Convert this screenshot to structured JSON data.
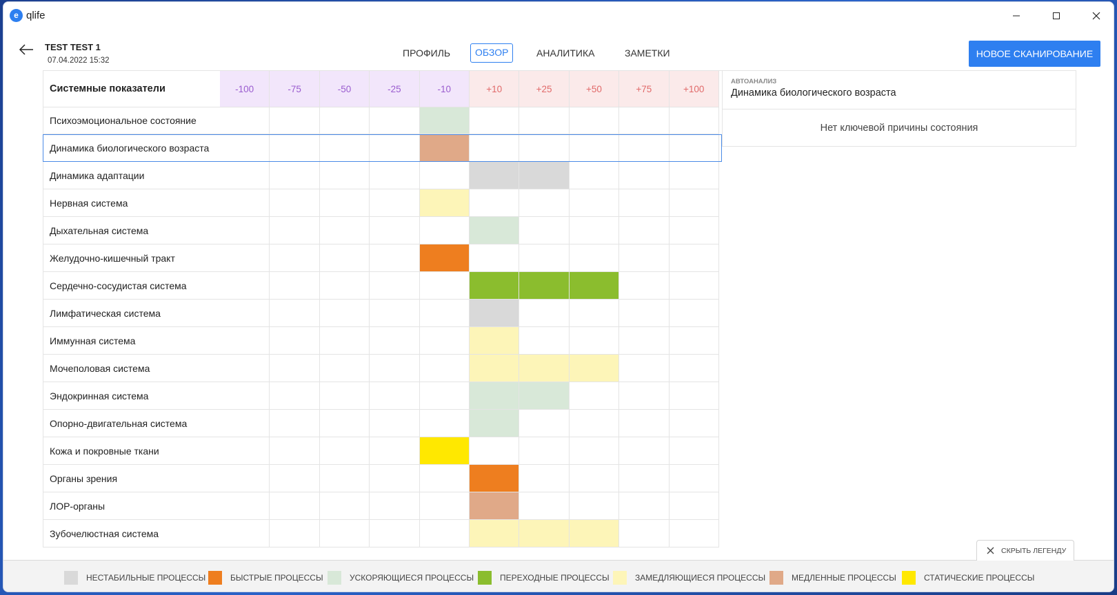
{
  "app": {
    "title": "qlife",
    "logo_letter": "e"
  },
  "header": {
    "patient_name": "TEST TEST 1",
    "date": "07.04.2022 15:32",
    "tabs": [
      {
        "label": "ПРОФИЛЬ",
        "active": false
      },
      {
        "label": "ОБЗОР",
        "active": true
      },
      {
        "label": "АНАЛИТИКА",
        "active": false
      },
      {
        "label": "ЗАМЕТКИ",
        "active": false
      }
    ],
    "new_scan_label": "НОВОЕ СКАНИРОВАНИЕ"
  },
  "grid": {
    "title": "Системные показатели",
    "columns": [
      "-100",
      "-75",
      "-50",
      "-25",
      "-10",
      "+10",
      "+25",
      "+50",
      "+75",
      "+100"
    ],
    "rows": [
      {
        "label": "Психоэмоциональное состояние",
        "cells": [
          null,
          null,
          null,
          null,
          "accelerating",
          null,
          null,
          null,
          null,
          null
        ]
      },
      {
        "label": "Динамика биологического возраста",
        "selected": true,
        "cells": [
          null,
          null,
          null,
          null,
          "slow",
          null,
          null,
          null,
          null,
          null
        ]
      },
      {
        "label": "Динамика адаптации",
        "cells": [
          null,
          null,
          null,
          null,
          null,
          "unstable",
          "unstable",
          null,
          null,
          null
        ]
      },
      {
        "label": "Нервная система",
        "cells": [
          null,
          null,
          null,
          null,
          "slowing",
          null,
          null,
          null,
          null,
          null
        ]
      },
      {
        "label": "Дыхательная система",
        "cells": [
          null,
          null,
          null,
          null,
          null,
          "accelerating",
          null,
          null,
          null,
          null
        ]
      },
      {
        "label": "Желудочно-кишечный тракт",
        "cells": [
          null,
          null,
          null,
          null,
          "fast",
          null,
          null,
          null,
          null,
          null
        ]
      },
      {
        "label": "Сердечно-сосудистая система",
        "cells": [
          null,
          null,
          null,
          null,
          null,
          "transitional",
          "transitional",
          "transitional",
          null,
          null
        ]
      },
      {
        "label": "Лимфатическая система",
        "cells": [
          null,
          null,
          null,
          null,
          null,
          "unstable",
          null,
          null,
          null,
          null
        ]
      },
      {
        "label": "Иммунная система",
        "cells": [
          null,
          null,
          null,
          null,
          null,
          "slowing",
          null,
          null,
          null,
          null
        ]
      },
      {
        "label": "Мочеполовая система",
        "cells": [
          null,
          null,
          null,
          null,
          null,
          "slowing",
          "slowing",
          "slowing",
          null,
          null
        ]
      },
      {
        "label": "Эндокринная система",
        "cells": [
          null,
          null,
          null,
          null,
          null,
          "accelerating",
          "accelerating",
          null,
          null,
          null
        ]
      },
      {
        "label": "Опорно-двигательная система",
        "cells": [
          null,
          null,
          null,
          null,
          null,
          "accelerating",
          null,
          null,
          null,
          null
        ]
      },
      {
        "label": "Кожа и покровные ткани",
        "cells": [
          null,
          null,
          null,
          null,
          "static",
          null,
          null,
          null,
          null,
          null
        ]
      },
      {
        "label": "Органы зрения",
        "cells": [
          null,
          null,
          null,
          null,
          null,
          "fast",
          null,
          null,
          null,
          null
        ]
      },
      {
        "label": "ЛОР-органы",
        "cells": [
          null,
          null,
          null,
          null,
          null,
          "slow",
          null,
          null,
          null,
          null
        ]
      },
      {
        "label": "Зубочелюстная система",
        "cells": [
          null,
          null,
          null,
          null,
          null,
          "slowing",
          "slowing",
          "slowing",
          null,
          null
        ]
      }
    ]
  },
  "autoanalysis": {
    "label": "АВТОАНАЛИЗ",
    "title": "Динамика биологического возраста",
    "message": "Нет ключевой причины состояния"
  },
  "legend": {
    "hide_label": "СКРЫТЬ ЛЕГЕНДУ",
    "items": [
      {
        "key": "unstable",
        "label": "НЕСТАБИЛЬНЫЕ ПРОЦЕССЫ",
        "color": "#d9d9d9"
      },
      {
        "key": "fast",
        "label": "БЫСТРЫЕ ПРОЦЕССЫ",
        "color": "#ee7e1f"
      },
      {
        "key": "accelerating",
        "label": "УСКОРЯЮЩИЕСЯ ПРОЦЕССЫ",
        "color": "#d8e8d8"
      },
      {
        "key": "transitional",
        "label": "ПЕРЕХОДНЫЕ ПРОЦЕССЫ",
        "color": "#8bbd2e"
      },
      {
        "key": "slowing",
        "label": "ЗАМЕДЛЯЮЩИЕСЯ ПРОЦЕССЫ",
        "color": "#fdf5b8"
      },
      {
        "key": "slow",
        "label": "МЕДЛЕННЫЕ ПРОЦЕССЫ",
        "color": "#e0a988"
      },
      {
        "key": "static",
        "label": "СТАТИЧЕСКИЕ ПРОЦЕССЫ",
        "color": "#ffe800"
      }
    ]
  }
}
